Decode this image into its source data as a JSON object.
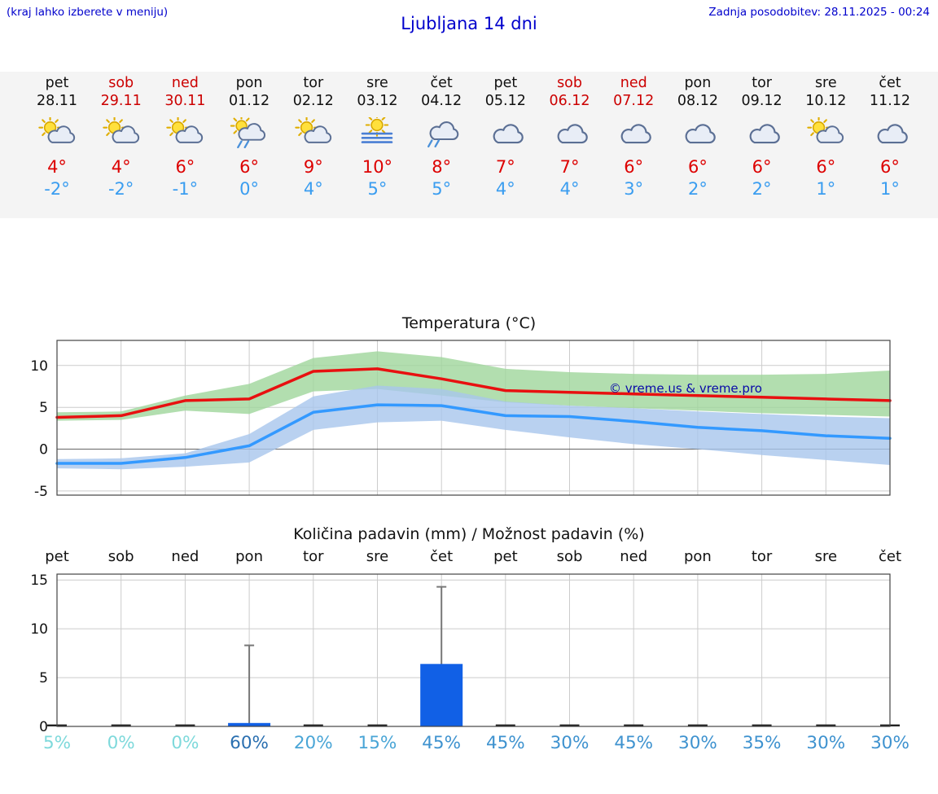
{
  "header": {
    "note": "(kraj lahko izberete v meniju)",
    "title": "Ljubljana 14 dni",
    "updated": "Zadnja posodobitev: 28.11.2025 - 00:24"
  },
  "forecast": {
    "days": [
      {
        "name": "pet",
        "date": "28.11",
        "weekend": false,
        "icon": "partly-cloudy",
        "high": "4°",
        "low": "-2°"
      },
      {
        "name": "sob",
        "date": "29.11",
        "weekend": true,
        "icon": "partly-cloudy",
        "high": "4°",
        "low": "-2°"
      },
      {
        "name": "ned",
        "date": "30.11",
        "weekend": true,
        "icon": "partly-cloudy",
        "high": "6°",
        "low": "-1°"
      },
      {
        "name": "pon",
        "date": "01.12",
        "weekend": false,
        "icon": "partly-cloudy-shower",
        "high": "6°",
        "low": "0°"
      },
      {
        "name": "tor",
        "date": "02.12",
        "weekend": false,
        "icon": "partly-cloudy",
        "high": "9°",
        "low": "4°"
      },
      {
        "name": "sre",
        "date": "03.12",
        "weekend": false,
        "icon": "fog",
        "high": "10°",
        "low": "5°"
      },
      {
        "name": "čet",
        "date": "04.12",
        "weekend": false,
        "icon": "cloudy-shower",
        "high": "8°",
        "low": "5°"
      },
      {
        "name": "pet",
        "date": "05.12",
        "weekend": false,
        "icon": "cloudy",
        "high": "7°",
        "low": "4°"
      },
      {
        "name": "sob",
        "date": "06.12",
        "weekend": true,
        "icon": "cloudy",
        "high": "7°",
        "low": "4°"
      },
      {
        "name": "ned",
        "date": "07.12",
        "weekend": true,
        "icon": "cloudy",
        "high": "6°",
        "low": "3°"
      },
      {
        "name": "pon",
        "date": "08.12",
        "weekend": false,
        "icon": "cloudy",
        "high": "6°",
        "low": "2°"
      },
      {
        "name": "tor",
        "date": "09.12",
        "weekend": false,
        "icon": "cloudy",
        "high": "6°",
        "low": "2°"
      },
      {
        "name": "sre",
        "date": "10.12",
        "weekend": false,
        "icon": "partly-cloudy",
        "high": "6°",
        "low": "1°"
      },
      {
        "name": "čet",
        "date": "11.12",
        "weekend": false,
        "icon": "cloudy",
        "high": "6°",
        "low": "1°"
      }
    ]
  },
  "chart_data": [
    {
      "type": "line",
      "title": "Temperatura (°C)",
      "categories": [
        "pet",
        "sob",
        "ned",
        "pon",
        "tor",
        "sre",
        "čet",
        "pet",
        "sob",
        "ned",
        "pon",
        "tor",
        "sre",
        "čet"
      ],
      "series": [
        {
          "name": "max-temp-line",
          "color": "#e81010",
          "values": [
            3.8,
            4.0,
            5.8,
            6.0,
            9.3,
            9.6,
            8.4,
            7.0,
            6.8,
            6.6,
            6.4,
            6.2,
            6.0,
            5.8
          ]
        },
        {
          "name": "min-temp-line",
          "color": "#3399ff",
          "values": [
            -1.7,
            -1.7,
            -1.0,
            0.4,
            4.4,
            5.3,
            5.2,
            4.0,
            3.9,
            3.3,
            2.6,
            2.2,
            1.6,
            1.3
          ]
        }
      ],
      "bands": [
        {
          "name": "max-temp-range-band",
          "color": "#9fd69b",
          "upper": [
            4.4,
            4.5,
            6.4,
            7.8,
            10.9,
            11.7,
            11.0,
            9.6,
            9.2,
            9.0,
            8.9,
            8.9,
            9.0,
            9.4
          ],
          "lower": [
            3.4,
            3.5,
            4.6,
            4.2,
            6.9,
            7.2,
            6.4,
            5.6,
            5.2,
            4.9,
            4.6,
            4.3,
            4.1,
            3.9
          ]
        },
        {
          "name": "min-temp-range-band",
          "color": "#a8c6ec",
          "upper": [
            -1.2,
            -1.1,
            -0.5,
            1.8,
            6.3,
            7.6,
            7.2,
            5.7,
            5.2,
            4.9,
            4.5,
            4.2,
            3.9,
            3.7
          ],
          "lower": [
            -2.3,
            -2.4,
            -2.1,
            -1.6,
            2.3,
            3.2,
            3.4,
            2.3,
            1.4,
            0.6,
            0.0,
            -0.7,
            -1.3,
            -1.9
          ]
        }
      ],
      "ylim": [
        -5.5,
        13
      ],
      "yticks": [
        -5,
        0,
        5,
        10
      ],
      "grid": "on",
      "watermark": "© vreme.us & vreme.pro",
      "watermark_color": "#0a0aa8"
    },
    {
      "type": "bar",
      "title": "Količina padavin (mm) / Možnost padavin (%)",
      "categories": [
        "pet",
        "sob",
        "ned",
        "pon",
        "tor",
        "sre",
        "čet",
        "pet",
        "sob",
        "ned",
        "pon",
        "tor",
        "sre",
        "čet"
      ],
      "values": [
        0,
        0,
        0,
        0.35,
        0,
        0,
        6.4,
        0,
        0,
        0,
        0,
        0,
        0,
        0
      ],
      "whisker_max": [
        0,
        0,
        0,
        8.3,
        0,
        0,
        14.3,
        0,
        0,
        0,
        0,
        0,
        0,
        0
      ],
      "probabilities": [
        5,
        0,
        0,
        60,
        20,
        15,
        45,
        45,
        30,
        45,
        30,
        35,
        30,
        30
      ],
      "ylim": [
        0,
        15.6
      ],
      "yticks": [
        0,
        5,
        10,
        15
      ],
      "grid": "on",
      "bar_color": "#1160e6",
      "prob_colors": {
        "very_low": "#7ed9db",
        "low": "#49a5d6",
        "mid": "#3e92cf",
        "high": "#2a6fb0"
      }
    }
  ]
}
